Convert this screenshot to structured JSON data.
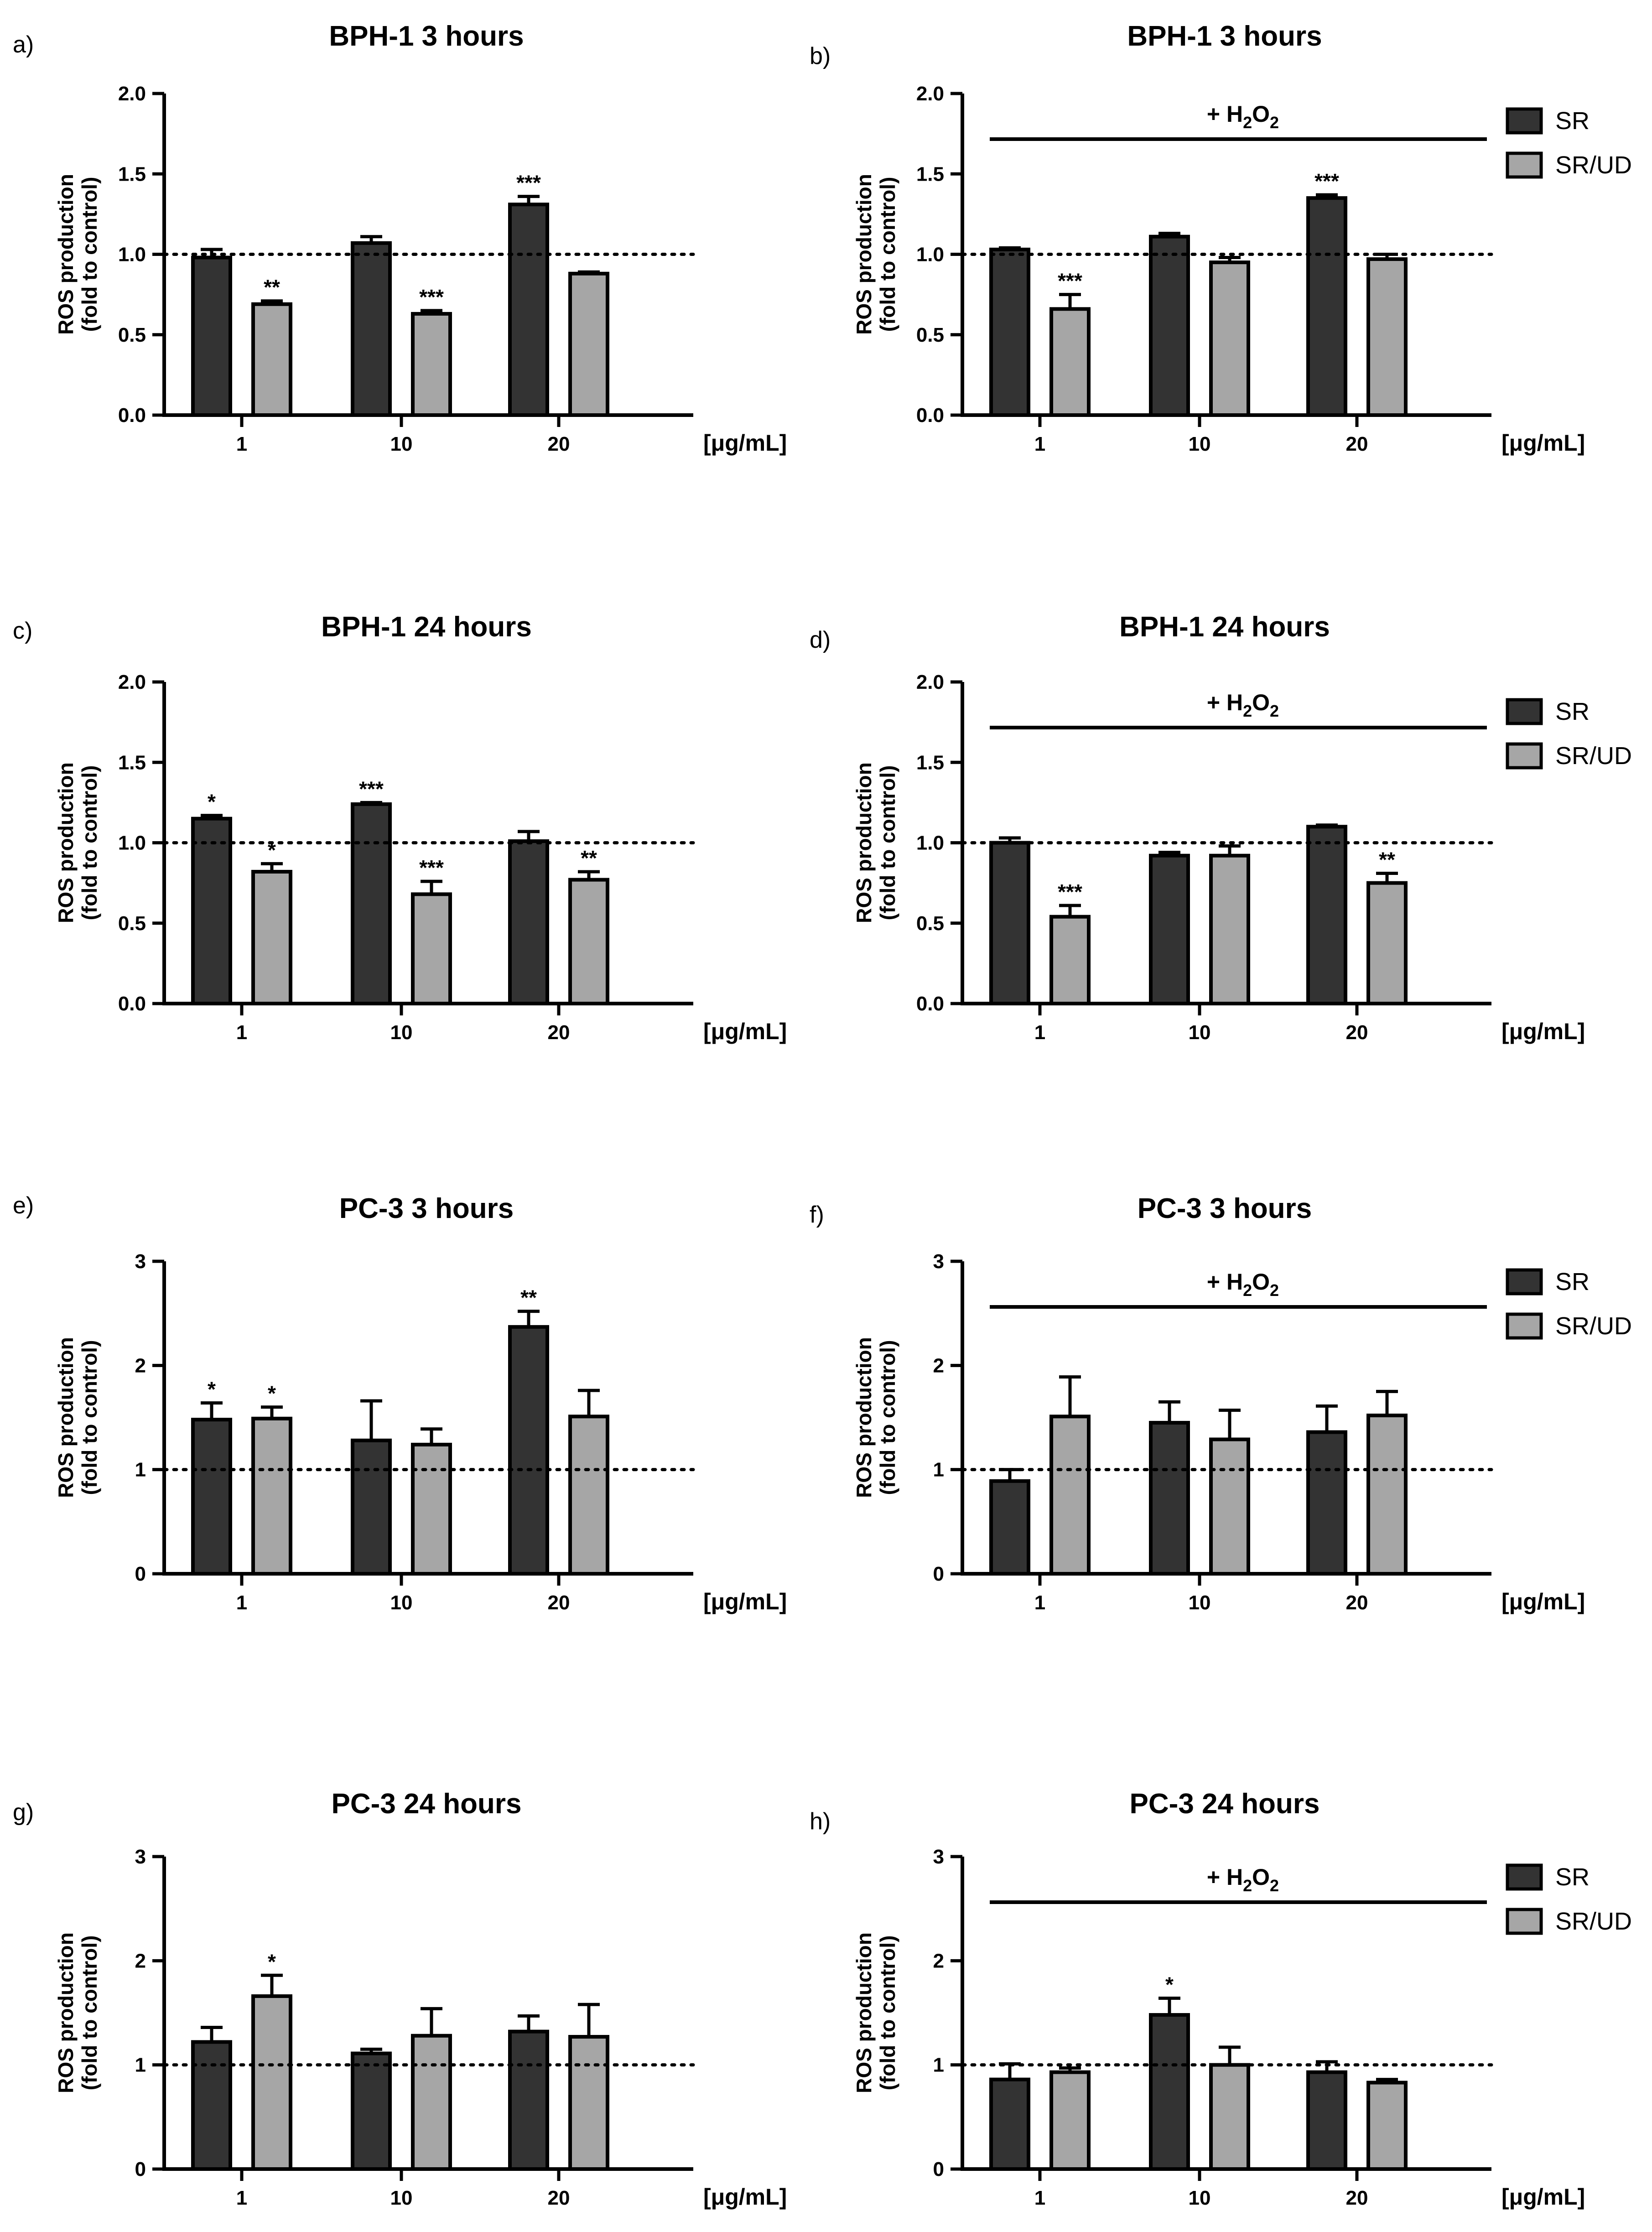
{
  "figure": {
    "x_unit_label": "[μg/mL]",
    "y_label_line1": "ROS production",
    "y_label_line2": "(fold to control)",
    "h2o_prefix": "+ H",
    "h2o_sub1": "2",
    "h2o_mid": "O",
    "h2o_sub2": "2",
    "legend": [
      {
        "name": "SR",
        "color": "#333333"
      },
      {
        "name": "SR/UD",
        "color": "#a6a6a6"
      }
    ],
    "colors": {
      "dark": "#333333",
      "light": "#a6a6a6",
      "axis": "#000000"
    }
  },
  "chart_data": [
    {
      "panel": "a)",
      "type": "bar",
      "title": "BPH-1 3 hours",
      "h2o": false,
      "categories": [
        "1",
        "10",
        "20"
      ],
      "ylim": [
        0,
        2.0
      ],
      "yticks": [
        "0.0",
        "0.5",
        "1.0",
        "1.5",
        "2.0"
      ],
      "reference_line": 1.0,
      "series": [
        {
          "name": "SR",
          "values": [
            0.98,
            1.07,
            1.31
          ],
          "errors": [
            0.05,
            0.04,
            0.05
          ],
          "sig": [
            "",
            "",
            "***"
          ]
        },
        {
          "name": "SR/UD",
          "values": [
            0.69,
            0.63,
            0.88
          ],
          "errors": [
            0.02,
            0.02,
            0.01
          ],
          "sig": [
            "**",
            "***",
            ""
          ]
        }
      ]
    },
    {
      "panel": "b)",
      "type": "bar",
      "title": "BPH-1 3 hours",
      "h2o": true,
      "categories": [
        "1",
        "10",
        "20"
      ],
      "ylim": [
        0,
        2.0
      ],
      "yticks": [
        "0.0",
        "0.5",
        "1.0",
        "1.5",
        "2.0"
      ],
      "reference_line": 1.0,
      "series": [
        {
          "name": "SR",
          "values": [
            1.03,
            1.11,
            1.35
          ],
          "errors": [
            0.01,
            0.02,
            0.02
          ],
          "sig": [
            "",
            "",
            "***"
          ]
        },
        {
          "name": "SR/UD",
          "values": [
            0.66,
            0.95,
            0.97
          ],
          "errors": [
            0.09,
            0.03,
            0.03
          ],
          "sig": [
            "***",
            "",
            ""
          ]
        }
      ]
    },
    {
      "panel": "c)",
      "type": "bar",
      "title": "BPH-1 24 hours",
      "h2o": false,
      "categories": [
        "1",
        "10",
        "20"
      ],
      "ylim": [
        0,
        2.0
      ],
      "yticks": [
        "0.0",
        "0.5",
        "1.0",
        "1.5",
        "2.0"
      ],
      "reference_line": 1.0,
      "series": [
        {
          "name": "SR",
          "values": [
            1.15,
            1.24,
            1.01
          ],
          "errors": [
            0.02,
            0.01,
            0.06
          ],
          "sig": [
            "*",
            "***",
            ""
          ]
        },
        {
          "name": "SR/UD",
          "values": [
            0.82,
            0.68,
            0.77
          ],
          "errors": [
            0.05,
            0.08,
            0.05
          ],
          "sig": [
            "*",
            "***",
            "**"
          ]
        }
      ]
    },
    {
      "panel": "d)",
      "type": "bar",
      "title": "BPH-1 24 hours",
      "h2o": true,
      "categories": [
        "1",
        "10",
        "20"
      ],
      "ylim": [
        0,
        2.0
      ],
      "yticks": [
        "0.0",
        "0.5",
        "1.0",
        "1.5",
        "2.0"
      ],
      "reference_line": 1.0,
      "series": [
        {
          "name": "SR",
          "values": [
            1.0,
            0.92,
            1.1
          ],
          "errors": [
            0.03,
            0.02,
            0.01
          ],
          "sig": [
            "",
            "",
            ""
          ]
        },
        {
          "name": "SR/UD",
          "values": [
            0.54,
            0.92,
            0.75
          ],
          "errors": [
            0.07,
            0.06,
            0.06
          ],
          "sig": [
            "***",
            "",
            "**"
          ]
        }
      ]
    },
    {
      "panel": "e)",
      "type": "bar",
      "title": "PC-3 3 hours",
      "h2o": false,
      "categories": [
        "1",
        "10",
        "20"
      ],
      "ylim": [
        0,
        3
      ],
      "yticks": [
        "0",
        "1",
        "2",
        "3"
      ],
      "reference_line": 1.0,
      "series": [
        {
          "name": "SR",
          "values": [
            1.48,
            1.28,
            2.37
          ],
          "errors": [
            0.16,
            0.38,
            0.15
          ],
          "sig": [
            "*",
            "",
            "**"
          ]
        },
        {
          "name": "SR/UD",
          "values": [
            1.49,
            1.24,
            1.51
          ],
          "errors": [
            0.11,
            0.15,
            0.25
          ],
          "sig": [
            "*",
            "",
            ""
          ]
        }
      ]
    },
    {
      "panel": "f)",
      "type": "bar",
      "title": "PC-3 3 hours",
      "h2o": true,
      "categories": [
        "1",
        "10",
        "20"
      ],
      "ylim": [
        0,
        3
      ],
      "yticks": [
        "0",
        "1",
        "2",
        "3"
      ],
      "reference_line": 1.0,
      "series": [
        {
          "name": "SR",
          "values": [
            0.89,
            1.45,
            1.36
          ],
          "errors": [
            0.11,
            0.2,
            0.25
          ],
          "sig": [
            "",
            "",
            ""
          ]
        },
        {
          "name": "SR/UD",
          "values": [
            1.51,
            1.29,
            1.52
          ],
          "errors": [
            0.38,
            0.28,
            0.23
          ],
          "sig": [
            "",
            "",
            ""
          ]
        }
      ]
    },
    {
      "panel": "g)",
      "type": "bar",
      "title": "PC-3 24 hours",
      "h2o": false,
      "categories": [
        "1",
        "10",
        "20"
      ],
      "ylim": [
        0,
        3
      ],
      "yticks": [
        "0",
        "1",
        "2",
        "3"
      ],
      "reference_line": 1.0,
      "series": [
        {
          "name": "SR",
          "values": [
            1.22,
            1.11,
            1.32
          ],
          "errors": [
            0.14,
            0.04,
            0.15
          ],
          "sig": [
            "",
            "",
            ""
          ]
        },
        {
          "name": "SR/UD",
          "values": [
            1.66,
            1.28,
            1.27
          ],
          "errors": [
            0.2,
            0.26,
            0.31
          ],
          "sig": [
            "*",
            "",
            ""
          ]
        }
      ]
    },
    {
      "panel": "h)",
      "type": "bar",
      "title": "PC-3 24 hours",
      "h2o": true,
      "categories": [
        "1",
        "10",
        "20"
      ],
      "ylim": [
        0,
        3
      ],
      "yticks": [
        "0",
        "1",
        "2",
        "3"
      ],
      "reference_line": 1.0,
      "series": [
        {
          "name": "SR",
          "values": [
            0.86,
            1.48,
            0.93
          ],
          "errors": [
            0.15,
            0.16,
            0.1
          ],
          "sig": [
            "",
            "*",
            ""
          ]
        },
        {
          "name": "SR/UD",
          "values": [
            0.93,
            1.0,
            0.83
          ],
          "errors": [
            0.04,
            0.17,
            0.03
          ],
          "sig": [
            "",
            "",
            ""
          ]
        }
      ]
    }
  ]
}
